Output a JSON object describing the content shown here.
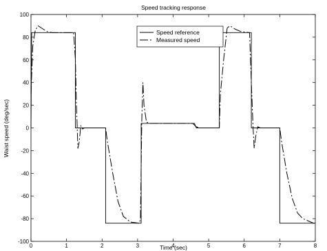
{
  "chart_data": {
    "type": "line",
    "title": "Speed tracking response",
    "xlabel": "Time (sec)",
    "ylabel": "Waist speed (deg/sec)",
    "xlim": [
      0,
      8
    ],
    "ylim": [
      -100,
      100
    ],
    "xticks": [
      0,
      1,
      2,
      3,
      4,
      5,
      6,
      7,
      8
    ],
    "yticks": [
      -100,
      -80,
      -60,
      -40,
      -20,
      0,
      20,
      40,
      60,
      80,
      100
    ],
    "grid": false,
    "legend_position": "top-center",
    "series": [
      {
        "name": "Speed reference",
        "style": "solid",
        "color": "#000000",
        "points": [
          [
            0,
            0
          ],
          [
            0.02,
            84
          ],
          [
            1.25,
            84
          ],
          [
            1.25,
            0
          ],
          [
            2.1,
            0
          ],
          [
            2.1,
            -84
          ],
          [
            3.1,
            -84
          ],
          [
            3.1,
            4
          ],
          [
            4.6,
            4
          ],
          [
            4.65,
            0
          ],
          [
            5.3,
            0
          ],
          [
            5.3,
            84
          ],
          [
            6.2,
            84
          ],
          [
            6.2,
            0
          ],
          [
            7.0,
            0
          ],
          [
            7.0,
            -84
          ],
          [
            8.0,
            -84
          ]
        ]
      },
      {
        "name": "Measured speed",
        "style": "dashdot",
        "color": "#000000",
        "points": [
          [
            0,
            30
          ],
          [
            0.05,
            72
          ],
          [
            0.12,
            86
          ],
          [
            0.2,
            90
          ],
          [
            0.3,
            88
          ],
          [
            0.45,
            85
          ],
          [
            0.6,
            84
          ],
          [
            1.2,
            84
          ],
          [
            1.25,
            60
          ],
          [
            1.28,
            20
          ],
          [
            1.32,
            -18
          ],
          [
            1.36,
            -12
          ],
          [
            1.4,
            2
          ],
          [
            1.45,
            -1
          ],
          [
            1.5,
            0
          ],
          [
            2.1,
            0
          ],
          [
            2.15,
            -12
          ],
          [
            2.3,
            -40
          ],
          [
            2.45,
            -65
          ],
          [
            2.6,
            -78
          ],
          [
            2.8,
            -83
          ],
          [
            3.05,
            -84
          ],
          [
            3.08,
            -80
          ],
          [
            3.12,
            10
          ],
          [
            3.15,
            40
          ],
          [
            3.18,
            20
          ],
          [
            3.25,
            5
          ],
          [
            3.35,
            4
          ],
          [
            4.55,
            4
          ],
          [
            4.65,
            1
          ],
          [
            4.75,
            0
          ],
          [
            5.3,
            0
          ],
          [
            5.33,
            30
          ],
          [
            5.42,
            60
          ],
          [
            5.52,
            88
          ],
          [
            5.6,
            90
          ],
          [
            5.75,
            87
          ],
          [
            5.9,
            85
          ],
          [
            6.15,
            84
          ],
          [
            6.2,
            40
          ],
          [
            6.25,
            0
          ],
          [
            6.28,
            -18
          ],
          [
            6.32,
            -8
          ],
          [
            6.38,
            1
          ],
          [
            6.45,
            0
          ],
          [
            7.0,
            0
          ],
          [
            7.05,
            -12
          ],
          [
            7.2,
            -40
          ],
          [
            7.35,
            -62
          ],
          [
            7.5,
            -75
          ],
          [
            7.65,
            -80
          ],
          [
            7.8,
            -82
          ],
          [
            7.95,
            -84
          ],
          [
            8.0,
            -84
          ]
        ]
      }
    ]
  }
}
